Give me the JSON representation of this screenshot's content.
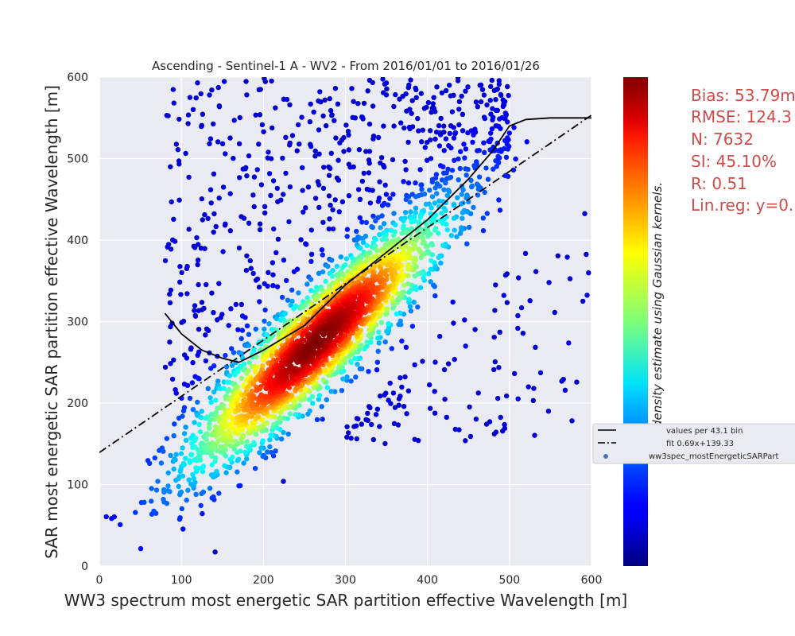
{
  "chart_data": {
    "type": "scatter",
    "title": "Ascending - Sentinel-1 A - WV2 - From 2016/01/01 to 2016/01/26",
    "xlabel": "WW3 spectrum most energetic SAR partition effective Wavelength [m]",
    "ylabel": "SAR most energetic SAR partition effective Wavelength [m]",
    "xlim": [
      0,
      600
    ],
    "ylim": [
      0,
      600
    ],
    "xticks": [
      "0",
      "100",
      "200",
      "300",
      "400",
      "500",
      "600"
    ],
    "yticks": [
      "0",
      "100",
      "200",
      "300",
      "400",
      "500",
      "600"
    ],
    "grid": true,
    "colorbar_label": "point density estimate using Gaussian kernels.",
    "colormap": "jet",
    "stats": {
      "bias": "Bias: 53.79m",
      "rmse": "RMSE: 124.3",
      "n": "N: 7632",
      "si": "SI: 45.10%",
      "r": "R: 0.51",
      "linreg": "Lin.reg: y=0."
    },
    "legend": {
      "placement": "right",
      "entries": [
        {
          "label": "values per 43.1 bin",
          "style": "solid"
        },
        {
          "label": "fit 0.69x+139.33",
          "style": "dashdot"
        },
        {
          "label": "ww3spec_mostEnergeticSARPart",
          "style": "marker"
        }
      ]
    },
    "binned_mean": {
      "x": [
        80,
        100,
        125,
        150,
        170,
        200,
        250,
        300,
        350,
        400,
        450,
        480,
        500,
        520,
        550,
        600
      ],
      "y": [
        310,
        285,
        265,
        255,
        250,
        265,
        295,
        345,
        385,
        425,
        475,
        510,
        540,
        548,
        550,
        550
      ]
    },
    "fit": {
      "slope": 0.69,
      "intercept": 139.33,
      "x_range": [
        0,
        600
      ]
    },
    "core": {
      "x_center": 265,
      "y_center": 275,
      "x_spread": 80,
      "y_spread": 80,
      "correlation": 0.9
    },
    "halo": {
      "x_range": [
        60,
        600
      ],
      "y_range": [
        80,
        600
      ]
    }
  }
}
